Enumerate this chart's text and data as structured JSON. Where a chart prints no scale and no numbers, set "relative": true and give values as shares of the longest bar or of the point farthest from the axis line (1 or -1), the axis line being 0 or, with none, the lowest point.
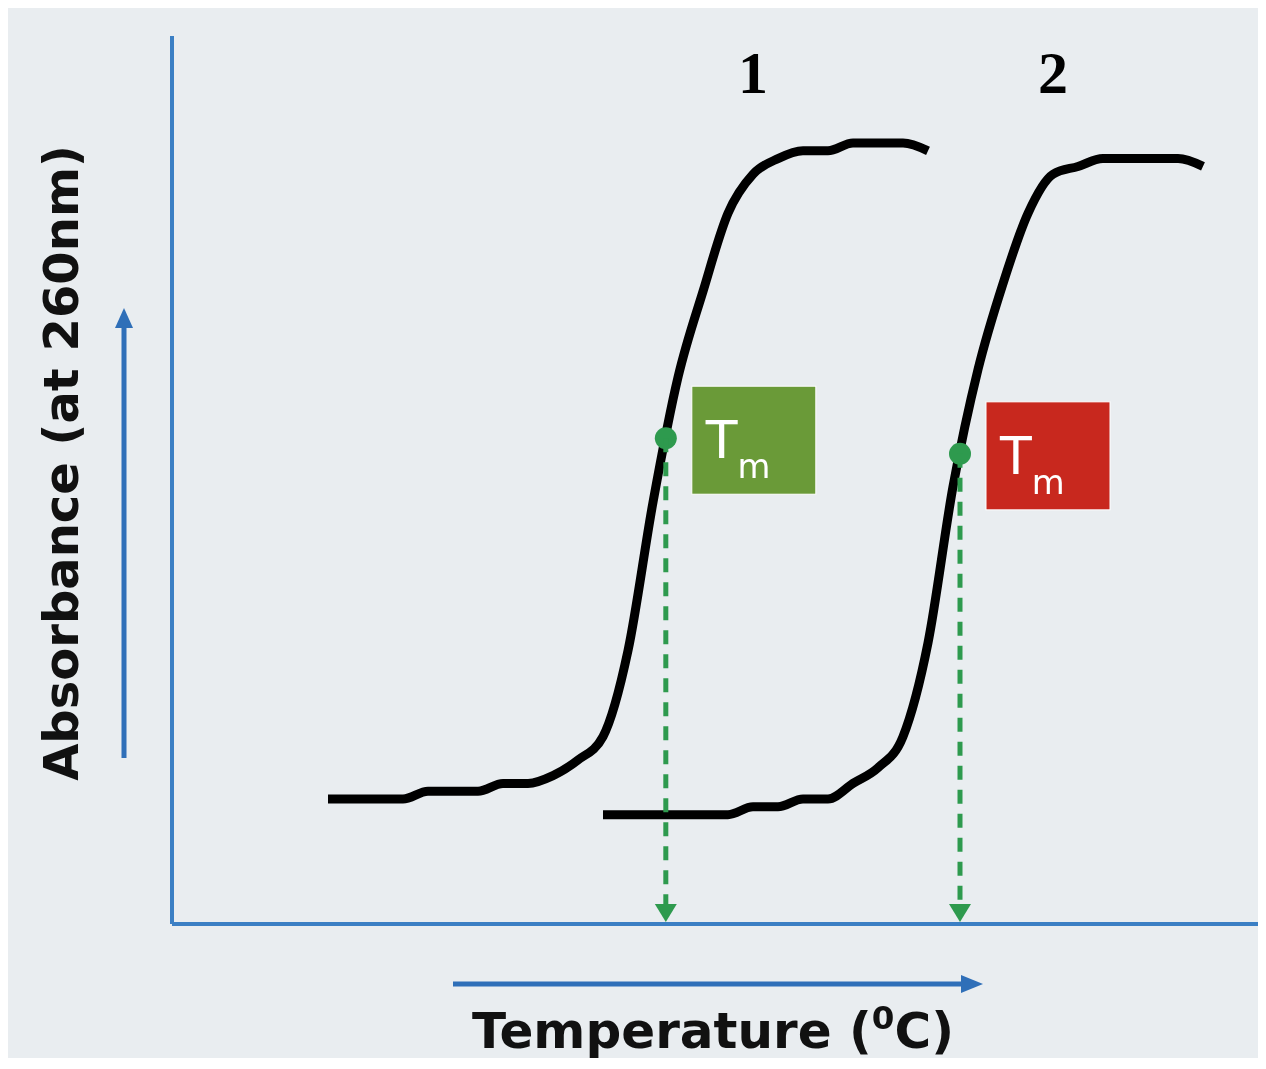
{
  "chart_data": {
    "type": "line",
    "relative": true,
    "xlabel": "Temperature ($^{0}$C)",
    "ylabel": "Absorbance (at 260nm)",
    "categories": [
      null,
      null,
      null,
      null,
      null,
      null,
      null,
      null,
      null,
      null,
      null,
      null,
      null,
      null,
      null,
      null,
      null,
      null,
      null,
      null,
      null,
      null,
      null,
      null,
      null,
      null,
      null,
      null,
      null,
      null,
      null,
      null,
      null,
      null,
      null,
      null
    ],
    "series": [
      {
        "name": "1",
        "color": "#000000",
        "values": [
          0.16,
          0.16,
          0.16,
          0.16,
          0.17,
          0.17,
          0.17,
          0.18,
          0.18,
          0.19,
          0.21,
          0.24,
          0.35,
          0.54,
          0.7,
          0.81,
          0.91,
          0.96,
          0.98,
          0.99,
          0.99,
          1.0,
          1.0,
          1.0,
          0.99,
          null,
          null,
          null,
          null,
          null,
          null,
          null,
          null,
          null,
          null,
          null
        ]
      },
      {
        "name": "2",
        "color": "#000000",
        "values": [
          null,
          null,
          null,
          null,
          null,
          null,
          null,
          null,
          null,
          null,
          null,
          0.14,
          0.14,
          0.14,
          0.14,
          0.14,
          0.14,
          0.15,
          0.15,
          0.16,
          0.16,
          0.18,
          0.2,
          0.24,
          0.36,
          0.56,
          0.71,
          0.82,
          0.91,
          0.96,
          0.97,
          0.98,
          0.98,
          0.98,
          0.98,
          0.97
        ]
      }
    ],
    "annotations": [
      "T$_{m}$",
      "T$_{m}$"
    ],
    "marker": "none",
    "line_style": "solid"
  }
}
